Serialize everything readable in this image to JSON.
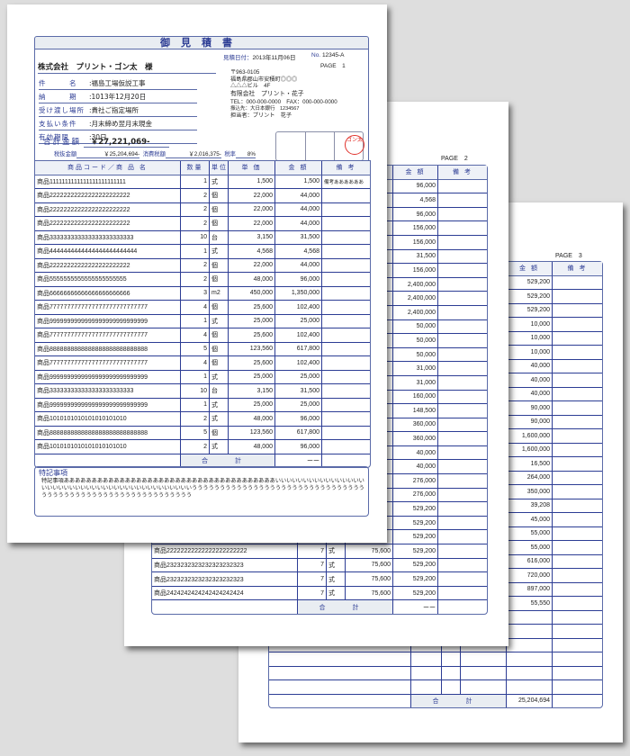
{
  "colors": {
    "accent": "#2c3c94",
    "header_bg": "#e9edf2",
    "seal": "#e0302a",
    "background": "#dedede"
  },
  "columns": {
    "product": "商品コード／商 品 名",
    "qty": "数量",
    "unit": "単位",
    "price": "単 価",
    "amount": "金 額",
    "remarks": "備 考"
  },
  "total_label": "合 計",
  "page1": {
    "title": "御見積書",
    "date_label": "見積日付：",
    "date": "2013年11月06日",
    "no_label": "No.",
    "no": "12345-A",
    "page": "PAGE　1",
    "customer": "株式会社　プリント・ゴン太　様",
    "fields": [
      {
        "label": "件　　　名",
        "value": "福島工場仮説工事"
      },
      {
        "label": "納　　　期",
        "value": "1013年12月20日"
      },
      {
        "label": "受け渡し場所",
        "value": "貴社ご指定場所"
      },
      {
        "label": "支払い条件",
        "value": "月末締め翌月末現金"
      },
      {
        "label": "有効期限",
        "value": "30日"
      }
    ],
    "total_label": "合計金額",
    "total": "￥27,221,069-",
    "pretax_label": "税抜金額",
    "pretax": "￥25,204,694-",
    "tax_label": "消費税額",
    "tax": "￥2,016,375-",
    "rate_label": "税率",
    "rate": "8%",
    "sender": {
      "zip": "〒963-0105",
      "address1": "福島県郡山市安積町◎◎◎",
      "address2": "△△△ビル　4F",
      "company": "有限会社　プリント・花子",
      "tel": "TEL：000-000-0000　FAX：000-000-0000",
      "bank": "振込先：大日本銀行　1234567",
      "person": "担当者：プリント　花子"
    },
    "seal_text": "ゴン太",
    "rows": [
      [
        "商品1111111111111111111111111",
        "1",
        "式",
        "1,500",
        "1,500",
        "備考ああああああ"
      ],
      [
        "商品22222222222222222222222",
        "2",
        "個",
        "22,000",
        "44,000",
        ""
      ],
      [
        "商品22222222222222222222222",
        "2",
        "個",
        "22,000",
        "44,000",
        ""
      ],
      [
        "商品22222222222222222222222",
        "2",
        "個",
        "22,000",
        "44,000",
        ""
      ],
      [
        "商品333333333333333333333333",
        "10",
        "台",
        "3,150",
        "31,500",
        ""
      ],
      [
        "商品4444444444444444444444444",
        "1",
        "式",
        "4,568",
        "4,568",
        ""
      ],
      [
        "商品22222222222222222222222",
        "2",
        "個",
        "22,000",
        "44,000",
        ""
      ],
      [
        "商品5555555555555555555555",
        "2",
        "個",
        "48,000",
        "96,000",
        ""
      ],
      [
        "商品66666666666666666666666",
        "3",
        "m2",
        "450,000",
        "1,350,000",
        ""
      ],
      [
        "商品7777777777777777777777777777",
        "4",
        "個",
        "25,600",
        "102,400",
        ""
      ],
      [
        "商品9999999999999999999999999999",
        "1",
        "式",
        "25,000",
        "25,000",
        ""
      ],
      [
        "商品7777777777777777777777777777",
        "4",
        "個",
        "25,600",
        "102,400",
        ""
      ],
      [
        "商品8888888888888888888888888888",
        "5",
        "個",
        "123,560",
        "617,800",
        ""
      ],
      [
        "商品7777777777777777777777777777",
        "4",
        "個",
        "25,600",
        "102,400",
        ""
      ],
      [
        "商品9999999999999999999999999999",
        "1",
        "式",
        "25,000",
        "25,000",
        ""
      ],
      [
        "商品333333333333333333333333",
        "10",
        "台",
        "3,150",
        "31,500",
        ""
      ],
      [
        "商品9999999999999999999999999999",
        "1",
        "式",
        "25,000",
        "25,000",
        ""
      ],
      [
        "商品1010101010101010101010",
        "2",
        "式",
        "48,000",
        "96,000",
        ""
      ],
      [
        "商品8888888888888888888888888888",
        "5",
        "個",
        "123,560",
        "617,800",
        ""
      ],
      [
        "商品1010101010101010101010",
        "2",
        "式",
        "48,000",
        "96,000",
        ""
      ]
    ],
    "total_value": "ーー",
    "remarks_title": "特記事項",
    "remarks_text": "特記事項ああああああああああああああああああああああああああああああああああああああいいいいいいいいいいいいいいいいいいいいいいいいいいいいいいいいいいいいいいいいいいいうううううううううううううううううううううううううううううううううううううううううううううううううううううううううう"
  },
  "page2": {
    "page": "PAGE　2",
    "rows": [
      [
        "",
        "",
        "",
        "",
        "96,000",
        ""
      ],
      [
        "",
        "",
        "",
        "",
        "4,568",
        ""
      ],
      [
        "",
        "",
        "",
        "",
        "96,000",
        ""
      ],
      [
        "",
        "",
        "",
        "",
        "156,000",
        ""
      ],
      [
        "",
        "",
        "",
        "",
        "156,000",
        ""
      ],
      [
        "",
        "",
        "",
        "",
        "31,500",
        ""
      ],
      [
        "",
        "",
        "",
        "",
        "156,000",
        ""
      ],
      [
        "",
        "",
        "",
        "",
        "2,400,000",
        ""
      ],
      [
        "",
        "",
        "",
        "",
        "2,400,000",
        ""
      ],
      [
        "",
        "",
        "",
        "",
        "2,400,000",
        ""
      ],
      [
        "",
        "",
        "",
        "",
        "50,000",
        ""
      ],
      [
        "",
        "",
        "",
        "",
        "50,000",
        ""
      ],
      [
        "",
        "",
        "",
        "",
        "50,000",
        ""
      ],
      [
        "",
        "",
        "",
        "",
        "31,000",
        ""
      ],
      [
        "",
        "",
        "",
        "",
        "31,000",
        ""
      ],
      [
        "",
        "",
        "",
        "",
        "160,000",
        ""
      ],
      [
        "",
        "",
        "",
        "",
        "148,500",
        ""
      ],
      [
        "",
        "",
        "",
        "",
        "360,000",
        ""
      ],
      [
        "",
        "",
        "",
        "",
        "360,000",
        ""
      ],
      [
        "",
        "",
        "",
        "",
        "40,000",
        ""
      ],
      [
        "",
        "",
        "",
        "",
        "40,000",
        ""
      ],
      [
        "",
        "",
        "",
        "",
        "276,000",
        ""
      ],
      [
        "",
        "",
        "",
        "",
        "276,000",
        ""
      ],
      [
        "",
        "",
        "",
        "",
        "529,200",
        ""
      ],
      [
        "",
        "",
        "",
        "",
        "529,200",
        ""
      ],
      [
        "",
        "",
        "",
        "",
        "529,200",
        ""
      ],
      [
        "商品22222222222222222222222",
        "7",
        "式",
        "75,600",
        "529,200",
        ""
      ],
      [
        "商品2323232323232323232323",
        "7",
        "式",
        "75,600",
        "529,200",
        ""
      ],
      [
        "商品2323232323232323232323",
        "7",
        "式",
        "75,600",
        "529,200",
        ""
      ],
      [
        "商品2424242424242424242424",
        "7",
        "式",
        "75,600",
        "529,200",
        ""
      ]
    ],
    "total_value": "ーー"
  },
  "page3": {
    "page": "PAGE　3",
    "rows": [
      [
        "",
        "",
        "",
        "",
        "529,200",
        ""
      ],
      [
        "",
        "",
        "",
        "",
        "529,200",
        ""
      ],
      [
        "",
        "",
        "",
        "",
        "529,200",
        ""
      ],
      [
        "",
        "",
        "",
        "",
        "10,000",
        ""
      ],
      [
        "",
        "",
        "",
        "",
        "10,000",
        ""
      ],
      [
        "",
        "",
        "",
        "",
        "10,000",
        ""
      ],
      [
        "",
        "",
        "",
        "",
        "40,000",
        ""
      ],
      [
        "",
        "",
        "",
        "",
        "40,000",
        ""
      ],
      [
        "",
        "",
        "",
        "",
        "40,000",
        ""
      ],
      [
        "",
        "",
        "",
        "",
        "90,000",
        ""
      ],
      [
        "",
        "",
        "",
        "",
        "90,000",
        ""
      ],
      [
        "",
        "",
        "",
        "",
        "1,600,000",
        ""
      ],
      [
        "",
        "",
        "",
        "",
        "1,600,000",
        ""
      ],
      [
        "",
        "",
        "",
        "",
        "16,500",
        ""
      ],
      [
        "",
        "",
        "",
        "",
        "264,000",
        ""
      ],
      [
        "",
        "",
        "",
        "",
        "350,000",
        ""
      ],
      [
        "",
        "",
        "",
        "",
        "39,208",
        ""
      ],
      [
        "",
        "",
        "",
        "",
        "45,000",
        ""
      ],
      [
        "",
        "",
        "",
        "",
        "55,000",
        ""
      ],
      [
        "",
        "",
        "",
        "",
        "55,000",
        ""
      ],
      [
        "",
        "",
        "",
        "",
        "616,000",
        ""
      ],
      [
        "",
        "",
        "",
        "",
        "720,000",
        ""
      ],
      [
        "",
        "",
        "",
        "",
        "897,000",
        ""
      ],
      [
        "",
        "",
        "",
        "",
        "55,550",
        ""
      ],
      [
        "",
        "",
        "",
        "",
        "",
        ""
      ],
      [
        "",
        "",
        "",
        "",
        "",
        ""
      ],
      [
        "",
        "",
        "",
        "",
        "",
        ""
      ],
      [
        "",
        "",
        "",
        "",
        "",
        ""
      ],
      [
        "",
        "",
        "",
        "",
        "",
        ""
      ],
      [
        "",
        "",
        "",
        "",
        "",
        ""
      ]
    ],
    "total_value": "25,204,694"
  }
}
